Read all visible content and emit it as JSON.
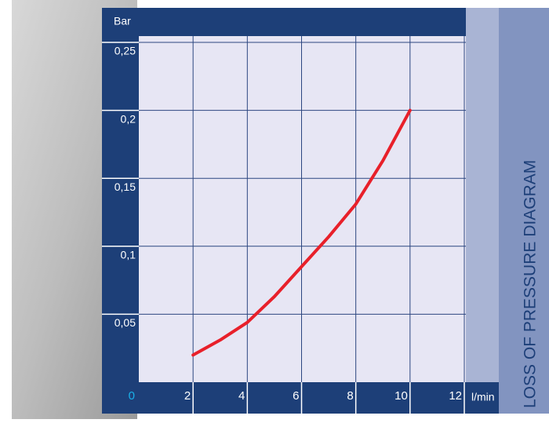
{
  "chart_data": {
    "type": "line",
    "title": "LOSS OF PRESSURE DIAGRAM",
    "y_label": "Bar",
    "x_label": "l/min",
    "x": [
      2,
      3,
      4,
      5,
      6,
      7,
      8,
      9,
      10
    ],
    "values": [
      0.02,
      0.031,
      0.044,
      0.063,
      0.085,
      0.107,
      0.131,
      0.163,
      0.2
    ],
    "color": "#e8202a",
    "xlim": [
      0,
      12
    ],
    "xticks": [
      0,
      2,
      4,
      6,
      8,
      10,
      12
    ],
    "ylim": [
      0,
      0.25
    ],
    "yticks": [
      {
        "value": 0.05,
        "label": "0,05"
      },
      {
        "value": 0.1,
        "label": "0,1"
      },
      {
        "value": 0.15,
        "label": "0,15"
      },
      {
        "value": 0.2,
        "label": "0,2"
      },
      {
        "value": 0.25,
        "label": "0,25"
      }
    ],
    "grid": true
  }
}
